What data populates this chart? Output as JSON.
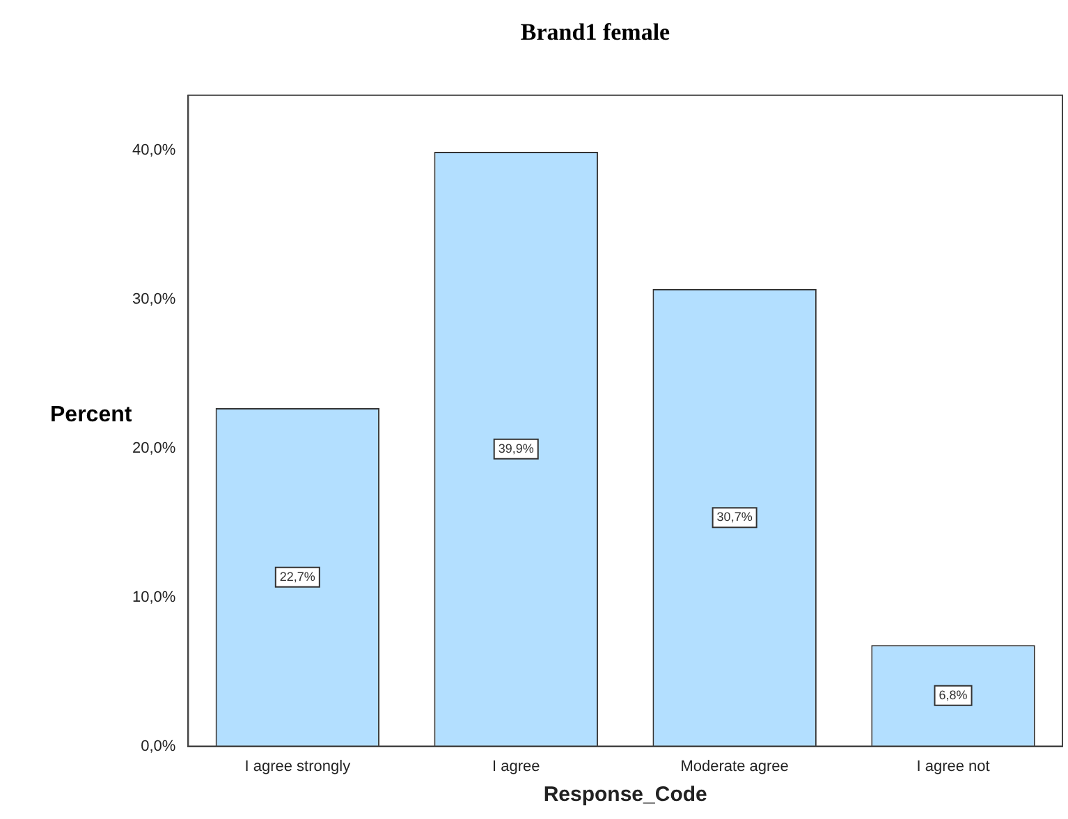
{
  "chart_data": {
    "type": "bar",
    "title": "Brand1 female",
    "xlabel": "Response_Code",
    "ylabel": "Percent",
    "categories": [
      "I agree strongly",
      "I agree",
      "Moderate agree",
      "I agree not"
    ],
    "values": [
      22.7,
      39.9,
      30.7,
      6.8
    ],
    "color": "#b3dfff",
    "value_labels": [
      "22,7%",
      "39,9%",
      "30,7%",
      "6,8%"
    ],
    "ylim": [
      0,
      43.7
    ],
    "yticks": [
      {
        "value": 0,
        "label": "0,0%"
      },
      {
        "value": 10,
        "label": "10,0%"
      },
      {
        "value": 20,
        "label": "20,0%"
      },
      {
        "value": 30,
        "label": "30,0%"
      },
      {
        "value": 40,
        "label": "40,0%"
      }
    ],
    "grid": false,
    "legend": false
  }
}
